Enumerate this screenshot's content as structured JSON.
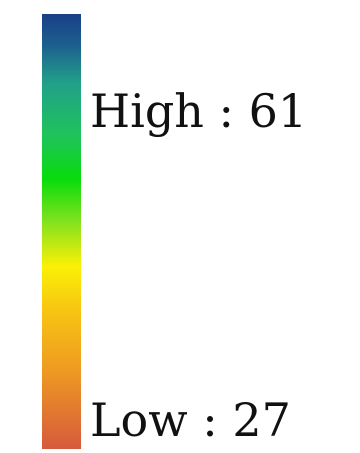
{
  "legend": {
    "high_label": "High : 61",
    "low_label": "Low : 27",
    "gradient_stops": [
      {
        "offset": 0.0,
        "color": "#1a3f87"
      },
      {
        "offset": 0.07,
        "color": "#1c5f8e"
      },
      {
        "offset": 0.16,
        "color": "#22a08a"
      },
      {
        "offset": 0.28,
        "color": "#1fc35a"
      },
      {
        "offset": 0.38,
        "color": "#08dc0c"
      },
      {
        "offset": 0.48,
        "color": "#86e21e"
      },
      {
        "offset": 0.58,
        "color": "#fbf006"
      },
      {
        "offset": 0.68,
        "color": "#f7c512"
      },
      {
        "offset": 0.82,
        "color": "#ee9a22"
      },
      {
        "offset": 1.0,
        "color": "#d65a3c"
      }
    ]
  }
}
